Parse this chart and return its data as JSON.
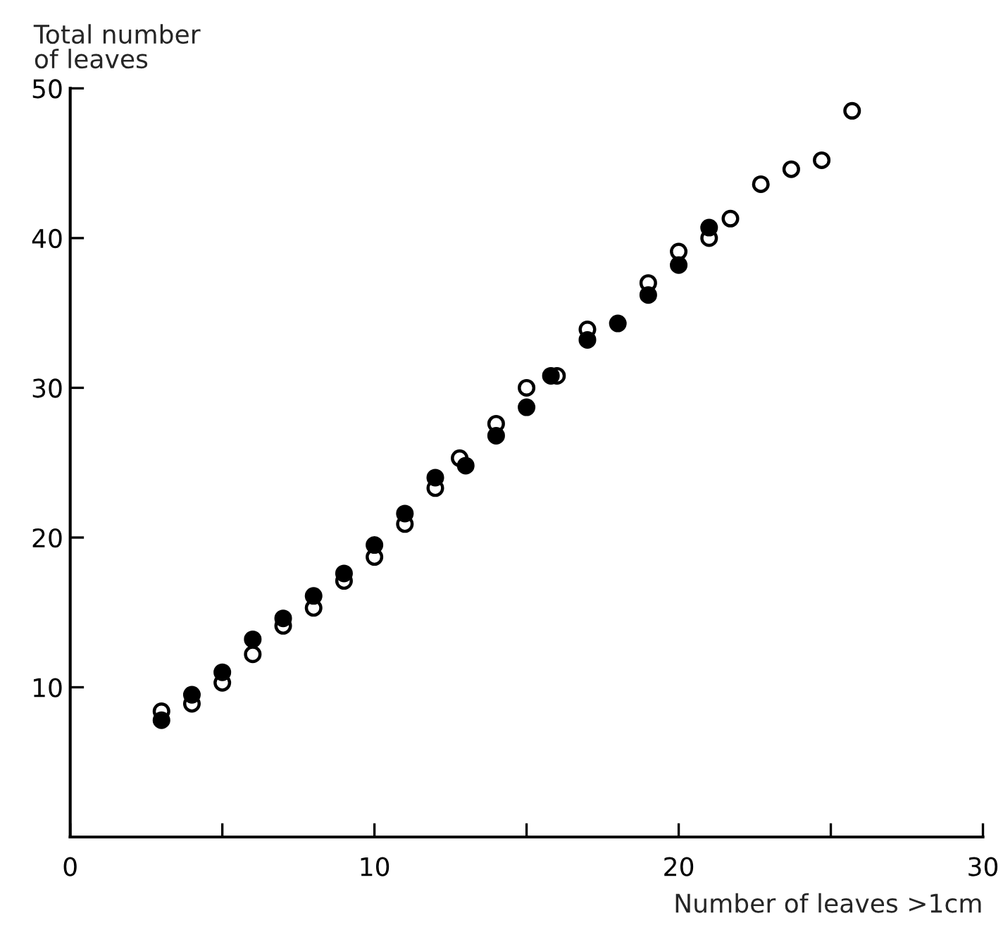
{
  "chart_data": {
    "type": "scatter",
    "xlabel": "Number of leaves >1cm",
    "ylabel": "Total number\nof leaves",
    "xlim": [
      0,
      30
    ],
    "ylim": [
      0,
      50
    ],
    "xticks": [
      0,
      {
        "value": 5,
        "label": null
      },
      10,
      {
        "value": 15,
        "label": null
      },
      20,
      {
        "value": 25,
        "label": null
      },
      30
    ],
    "yticks": [
      10,
      20,
      30,
      40,
      50
    ],
    "marker": "circle",
    "grid": false,
    "legend": false,
    "series": [
      {
        "color": "#000000",
        "x": [
          3,
          4,
          5,
          6,
          7,
          8,
          9,
          10,
          11,
          12,
          13,
          14,
          15,
          15.8,
          17,
          18,
          19,
          20,
          21
        ],
        "values": [
          7.8,
          9.5,
          11.0,
          13.2,
          14.6,
          16.1,
          17.6,
          19.5,
          21.6,
          24.0,
          24.8,
          26.8,
          28.7,
          30.8,
          33.2,
          34.3,
          36.2,
          38.2,
          40.7
        ]
      },
      {
        "color": "#000000",
        "x": [
          3,
          4,
          5,
          6,
          7,
          8,
          9,
          10,
          11,
          12,
          12.8,
          14,
          15,
          16,
          17,
          19,
          20,
          21,
          21.7,
          22.7,
          23.7,
          24.7,
          25.7
        ],
        "values": [
          8.4,
          8.9,
          10.3,
          12.2,
          14.1,
          15.3,
          17.1,
          18.7,
          20.9,
          23.3,
          25.3,
          27.6,
          30.0,
          30.8,
          33.9,
          37.0,
          39.1,
          40.0,
          41.3,
          43.6,
          44.6,
          45.2,
          48.5
        ]
      }
    ]
  }
}
